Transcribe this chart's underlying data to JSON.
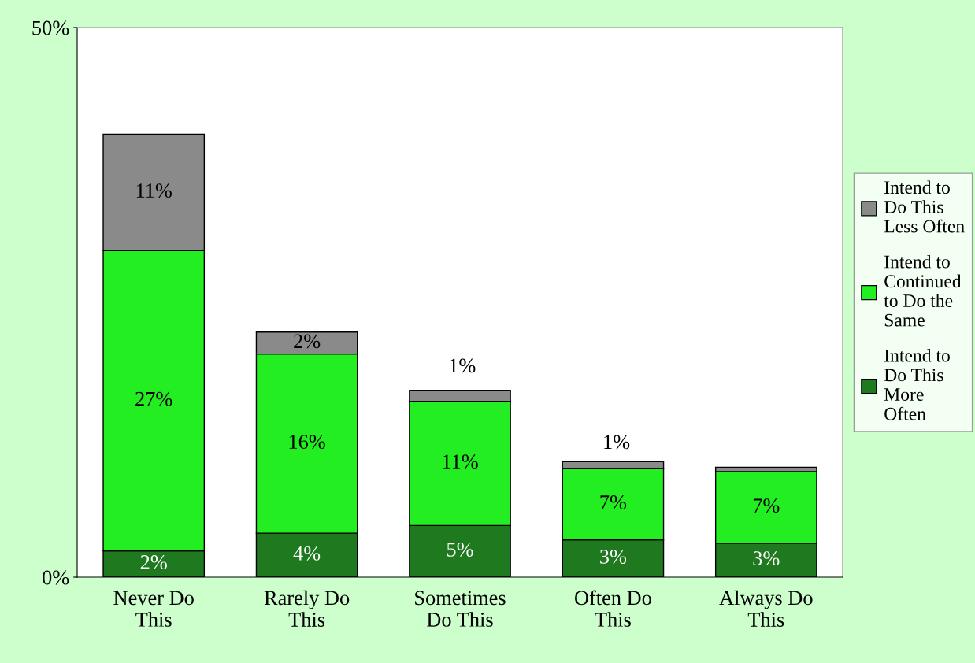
{
  "chart_data": {
    "type": "bar",
    "stacked": true,
    "categories": [
      "Never Do\nThis",
      "Rarely Do\nThis",
      "Sometimes\nDo This",
      "Often Do\nThis",
      "Always Do\nThis"
    ],
    "series": [
      {
        "name": "Intend to\nDo This\nMore\nOften",
        "color": "#1f7a1f",
        "values": [
          2.4,
          4.0,
          4.7,
          3.4,
          3.1
        ],
        "value_labels": [
          "2%",
          "4%",
          "5%",
          "3%",
          "3%"
        ]
      },
      {
        "name": "Intend to\nContinued\nto Do the\nSame",
        "color": "#22ee22",
        "values": [
          27.3,
          16.3,
          11.3,
          6.5,
          6.5
        ],
        "value_labels": [
          "27%",
          "16%",
          "11%",
          "7%",
          "7%"
        ]
      },
      {
        "name": "Intend to\nDo This\nLess Often",
        "color": "#8a8a8a",
        "values": [
          10.6,
          2.0,
          1.0,
          0.6,
          0.4
        ],
        "value_labels": [
          "11%",
          "2%",
          "1%",
          "1%",
          null
        ]
      }
    ],
    "ylim": [
      0,
      50
    ],
    "yticks": [
      {
        "value": 0,
        "label": "0%"
      },
      {
        "value": 50,
        "label": "50%"
      }
    ],
    "grid": false,
    "legend": "right"
  }
}
